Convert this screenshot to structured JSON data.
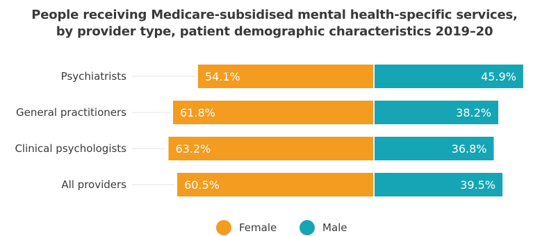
{
  "title_lines": [
    "People receiving Medicare-subsidised mental health-specific services,",
    "by provider type, patient demographic characteristics 2019–20"
  ],
  "legend": [
    {
      "label": "Female",
      "color": "#f39c1f"
    },
    {
      "label": "Male",
      "color": "#16a5b4"
    }
  ],
  "chart_data": {
    "type": "bar",
    "orientation": "horizontal",
    "stacked": true,
    "diverging": true,
    "categories": [
      "Psychiatrists",
      "General practitioners",
      "Clinical psychologists",
      "All providers"
    ],
    "series": [
      {
        "name": "Female",
        "values": [
          54.1,
          61.8,
          63.2,
          60.5
        ],
        "labels": [
          "54.1%",
          "61.8%",
          "63.2%",
          "60.5%"
        ],
        "color": "#f39c1f"
      },
      {
        "name": "Male",
        "values": [
          45.9,
          38.2,
          36.8,
          39.5
        ],
        "labels": [
          "45.9%",
          "38.2%",
          "36.8%",
          "39.5%"
        ],
        "color": "#16a5b4"
      }
    ],
    "unit": "%",
    "legend_position": "bottom",
    "grid": false
  }
}
